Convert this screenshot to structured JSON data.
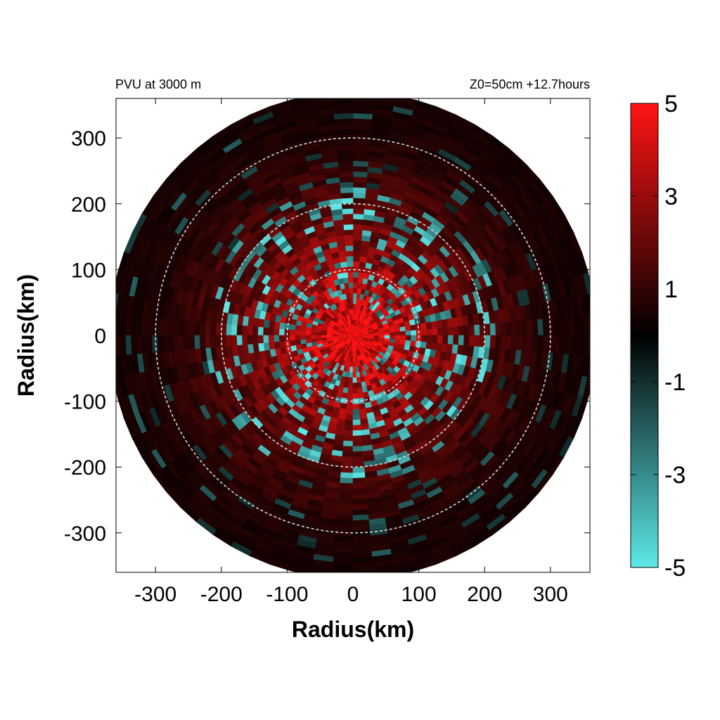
{
  "chart_data": {
    "type": "heatmap",
    "title_left": "PVU at  3000 m",
    "title_right": "Z0=50cm  +12.7hours",
    "xlabel": "Radius(km)",
    "ylabel": "Radius(km)",
    "xlim": [
      -360,
      360
    ],
    "ylim": [
      -360,
      360
    ],
    "xticks": [
      -300,
      -200,
      -100,
      0,
      100,
      200,
      300
    ],
    "yticks": [
      300,
      200,
      100,
      0,
      -100,
      -200,
      -300
    ],
    "data_domain_radius_km": 370,
    "range_rings_km": [
      100,
      200,
      300
    ],
    "colorbar": {
      "min": -5,
      "max": 5,
      "ticks": [
        5,
        3,
        1,
        -1,
        -3,
        -5
      ],
      "colors": {
        "low": "#5de8e8",
        "mid": "#000000",
        "high": "#ff1414"
      }
    },
    "field_description": "Potential vorticity (PVU) polar field; strong positive core near center, mixed positive/negative rings between 50 and 220 km, weak positive beyond",
    "radial_profile_pvu": [
      {
        "r": 0,
        "value": 5
      },
      {
        "r": 40,
        "value": 4
      },
      {
        "r": 100,
        "value": 3
      },
      {
        "r": 200,
        "value": 1.5
      },
      {
        "r": 300,
        "value": 0.6
      },
      {
        "r": 370,
        "value": 0.4
      }
    ]
  }
}
